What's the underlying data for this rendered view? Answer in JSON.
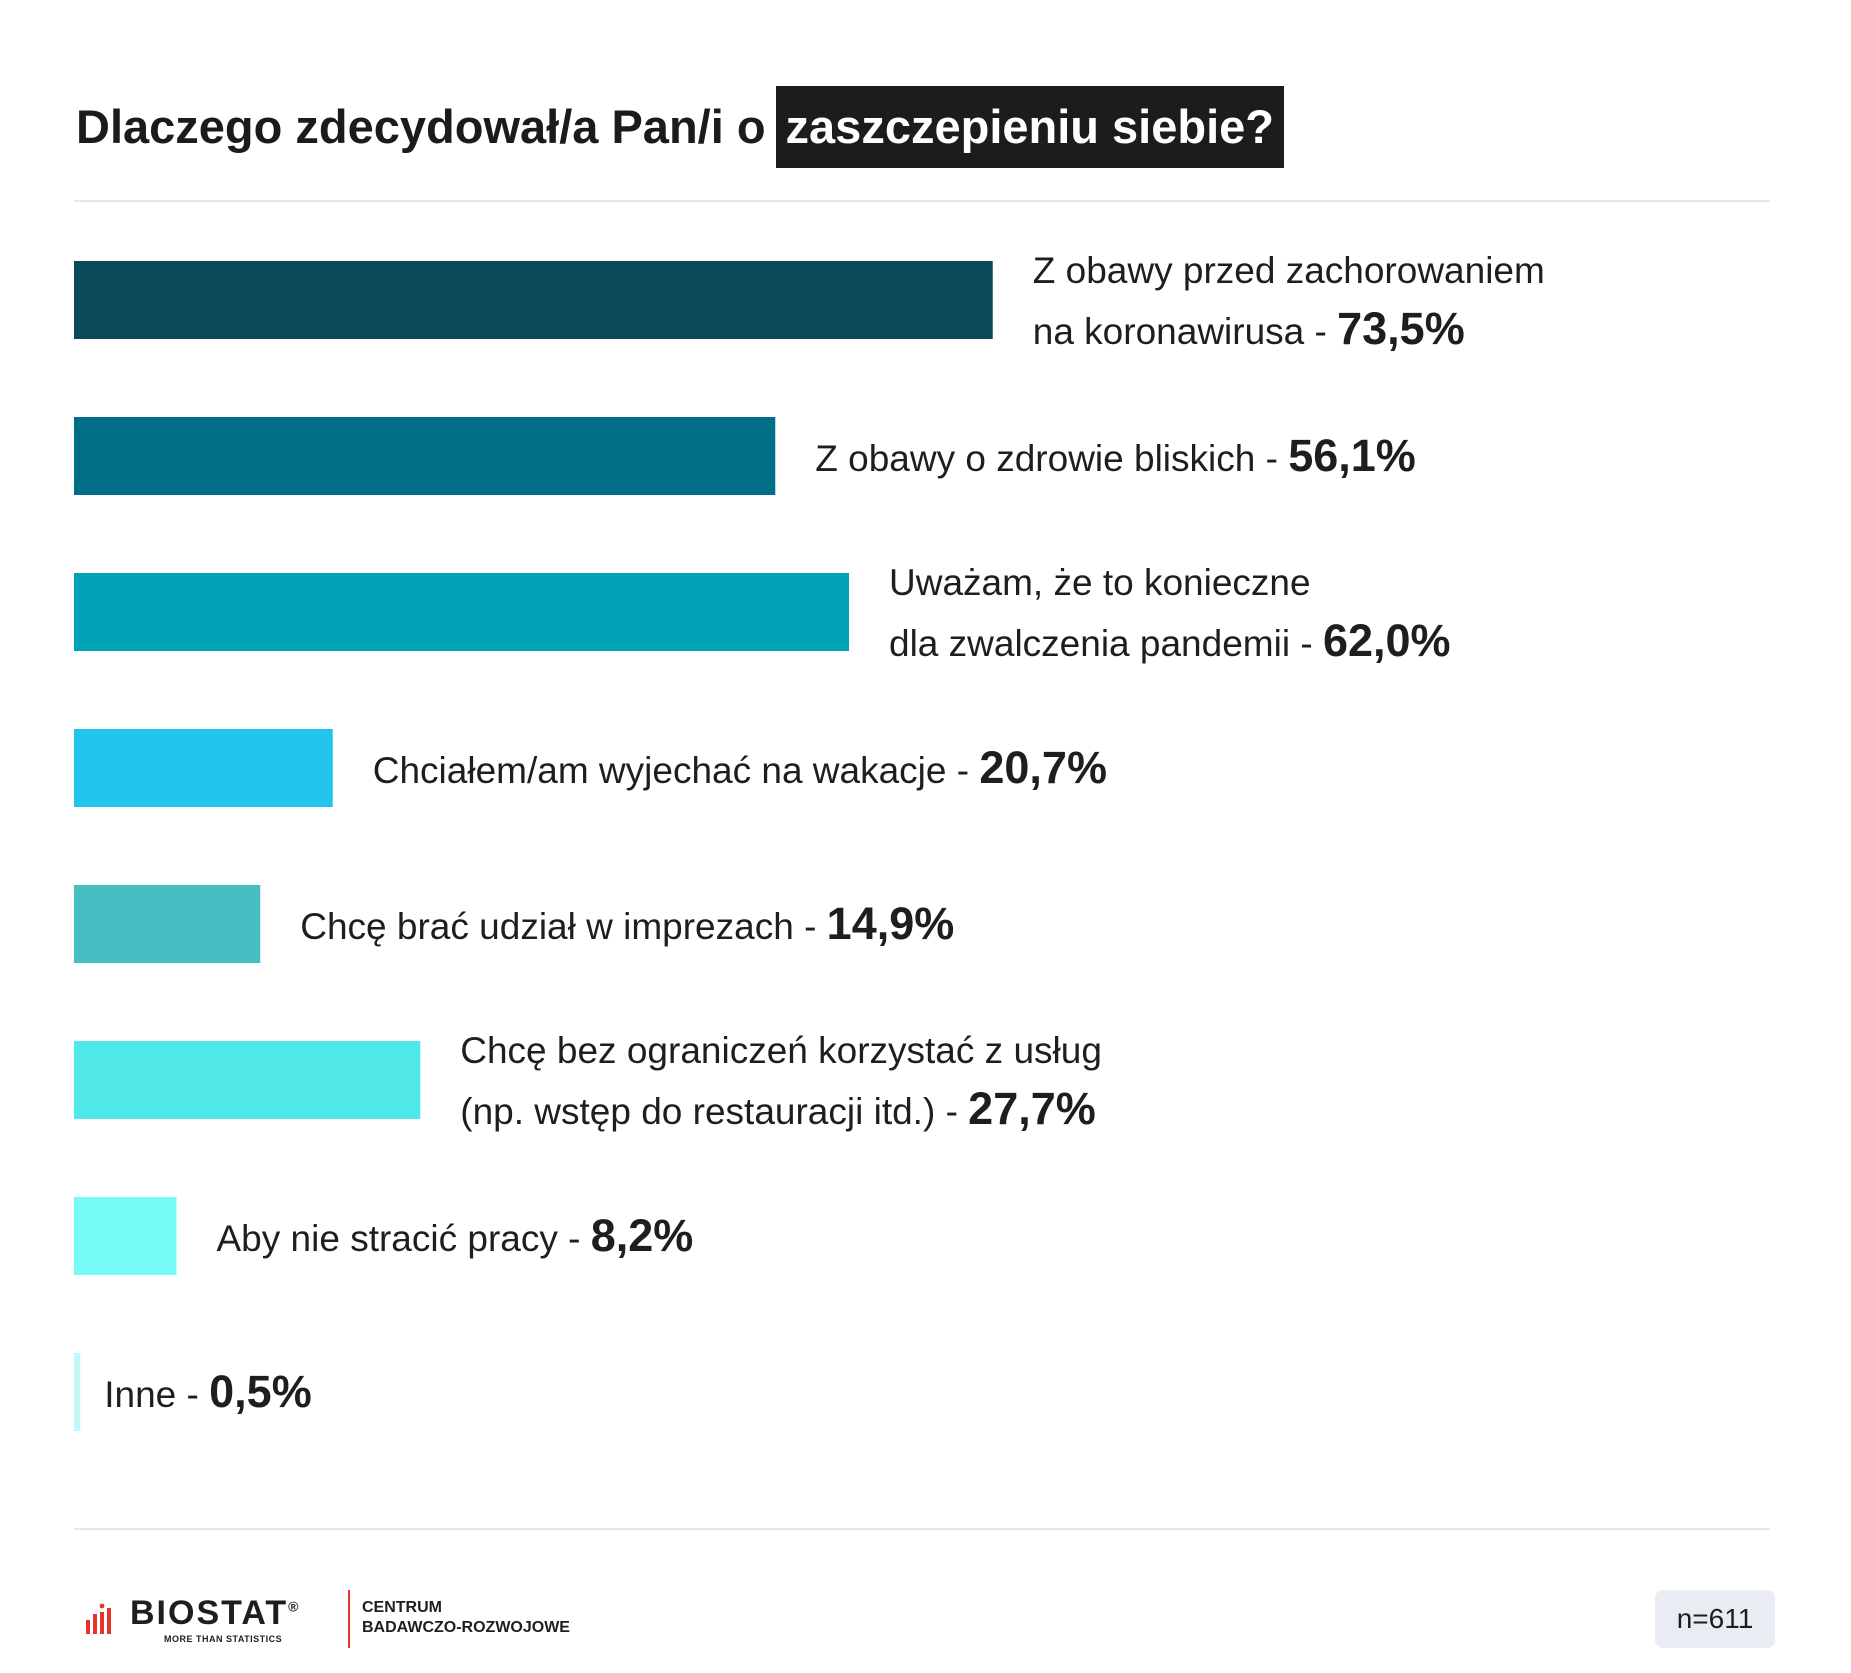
{
  "title": {
    "part1": "Dlaczego zdecydował/a Pan/i o",
    "highlight": "zaszczepieniu siebie?"
  },
  "chart_data": {
    "type": "bar",
    "orientation": "horizontal",
    "categories": [
      [
        "Z obawy przed zachorowaniem",
        "na koronawirusa"
      ],
      [
        "Z obawy o zdrowie bliskich"
      ],
      [
        "Uważam, że to konieczne",
        "dla zwalczenia pandemii"
      ],
      [
        "Chciałem/am wyjechać na wakacje"
      ],
      [
        "Chcę brać udział w imprezach"
      ],
      [
        "Chcę bez ograniczeń korzystać z usług",
        "(np. wstęp do restauracji itd.)"
      ],
      [
        "Aby nie stracić pracy"
      ],
      [
        "Inne"
      ]
    ],
    "values": [
      73.5,
      56.1,
      62.0,
      20.7,
      14.9,
      27.7,
      8.2,
      0.5
    ],
    "value_labels": [
      "73,5%",
      "56,1%",
      "62,0%",
      "20,7%",
      "14,9%",
      "27,7%",
      "8,2%",
      "0,5%"
    ],
    "colors": [
      "#0a4a58",
      "#006e87",
      "#00a3b5",
      "#22c4ee",
      "#46bec2",
      "#50e8e8",
      "#75fcf8",
      "#c4f5f7"
    ],
    "separator": " - ",
    "xlim": [
      0,
      100
    ],
    "grid": false,
    "legend": "none"
  },
  "footer": {
    "logo_text": "BIOSTAT",
    "logo_reg": "®",
    "logo_tagline": "MORE THAN STATISTICS",
    "subtitle_line1": "CENTRUM",
    "subtitle_line2": "BADAWCZO-ROZWOJOWE",
    "sample_size": "n=611"
  }
}
